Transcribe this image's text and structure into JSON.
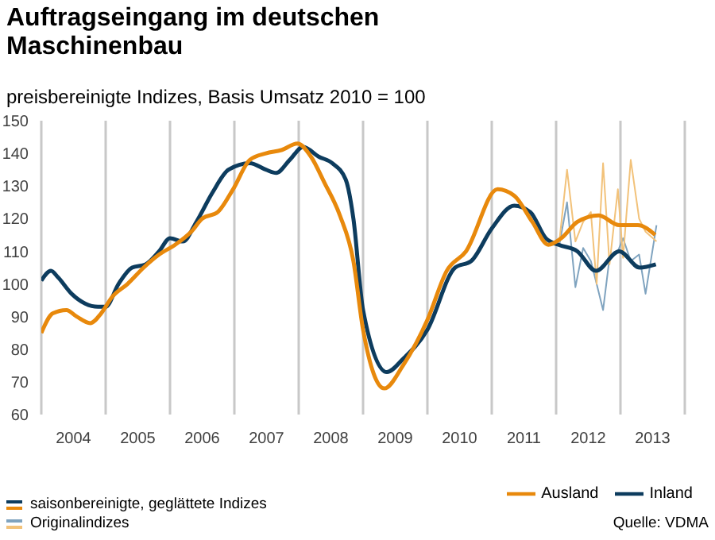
{
  "chart_data": {
    "type": "line",
    "title": "Auftragseingang im deutschen Maschinenbau",
    "subtitle": "preisbereinigte Indizes, Basis Umsatz 2010 = 100",
    "xlim": [
      2004,
      2014
    ],
    "xticks": [
      {
        "value": 2004,
        "label": null
      },
      {
        "value": 2004.5,
        "label": "2004"
      },
      {
        "value": 2005,
        "label": null
      },
      {
        "value": 2005.5,
        "label": "2005"
      },
      {
        "value": 2006,
        "label": null
      },
      {
        "value": 2006.5,
        "label": "2006"
      },
      {
        "value": 2007,
        "label": null
      },
      {
        "value": 2007.5,
        "label": "2007"
      },
      {
        "value": 2008,
        "label": null
      },
      {
        "value": 2008.5,
        "label": "2008"
      },
      {
        "value": 2009,
        "label": null
      },
      {
        "value": 2009.5,
        "label": "2009"
      },
      {
        "value": 2010,
        "label": null
      },
      {
        "value": 2010.5,
        "label": "2010"
      },
      {
        "value": 2011,
        "label": null
      },
      {
        "value": 2011.5,
        "label": "2011"
      },
      {
        "value": 2012,
        "label": null
      },
      {
        "value": 2012.5,
        "label": "2012"
      },
      {
        "value": 2013,
        "label": null
      },
      {
        "value": 2013.5,
        "label": "2013"
      },
      {
        "value": 2014,
        "label": null
      }
    ],
    "ylim": [
      60,
      150
    ],
    "yticks": [
      60,
      70,
      80,
      90,
      100,
      110,
      120,
      130,
      140,
      150
    ],
    "grid": "x",
    "legend": "bottom right",
    "marker": "none",
    "line_style": "solid",
    "series": [
      {
        "name": "Inland",
        "color": "#0d3c5e",
        "x": [
          2004,
          2004.15,
          2004.26,
          2004.47,
          2004.68,
          2004.88,
          2005,
          2005.2,
          2005.41,
          2005.62,
          2005.83,
          2006,
          2006.2,
          2006.41,
          2006.66,
          2006.91,
          2007.24,
          2007.49,
          2007.65,
          2007.86,
          2008.07,
          2008.31,
          2008.52,
          2008.73,
          2008.85,
          2009,
          2009.37,
          2009.62,
          2010,
          2010.43,
          2010.68,
          2011,
          2011.35,
          2011.6,
          2011.84,
          2012.04,
          2012.33,
          2012.62,
          2012.98,
          2013.3,
          2013.55
        ],
        "values": [
          101,
          104,
          102,
          97,
          94,
          93,
          93,
          100,
          105,
          106,
          110,
          114,
          113,
          119,
          128,
          135,
          137,
          135,
          134,
          138,
          142,
          139,
          137,
          132,
          120,
          92,
          73,
          77,
          86,
          105,
          107,
          117,
          124,
          122,
          114,
          112,
          110,
          104,
          110,
          105,
          106
        ]
      },
      {
        "name": "Ausland",
        "color": "#e8890c",
        "x": [
          2004,
          2004.18,
          2004.39,
          2004.55,
          2004.76,
          2004.93,
          2005.1,
          2005.34,
          2005.59,
          2005.83,
          2006.08,
          2006.33,
          2006.5,
          2006.74,
          2006.98,
          2007.24,
          2007.49,
          2007.73,
          2007.98,
          2008.19,
          2008.4,
          2008.64,
          2008.85,
          2009,
          2009.33,
          2009.62,
          2010,
          2010.3,
          2010.6,
          2011.09,
          2011.35,
          2011.63,
          2011.88,
          2012.08,
          2012.33,
          2012.66,
          2012.98,
          2013.27,
          2013.54
        ],
        "values": [
          85,
          91,
          92,
          90,
          88,
          91,
          96,
          100,
          105,
          109,
          112,
          116,
          120,
          122,
          129,
          138,
          140,
          141,
          143,
          139,
          131,
          121,
          107,
          86,
          68,
          75,
          89,
          104,
          110,
          129,
          127,
          119,
          112,
          114,
          119,
          121,
          118,
          118,
          115
        ]
      },
      {
        "color": "#7fa3bf",
        "x": [
          2011.9,
          2012.05,
          2012.17,
          2012.3,
          2012.42,
          2012.54,
          2012.63,
          2012.73,
          2012.83,
          2012.96,
          2013.04,
          2013.16,
          2013.29,
          2013.39,
          2013.56
        ],
        "values": [
          112,
          112,
          125,
          99,
          111,
          107,
          100,
          92,
          108,
          110,
          114,
          107,
          109,
          97,
          118
        ]
      },
      {
        "color": "#f2c27a",
        "x": [
          2011.9,
          2012.05,
          2012.17,
          2012.3,
          2012.42,
          2012.54,
          2012.63,
          2012.73,
          2012.83,
          2012.96,
          2013.04,
          2013.16,
          2013.29,
          2013.39,
          2013.56
        ],
        "values": [
          112,
          113,
          135,
          113,
          119,
          122,
          100,
          137,
          106,
          129,
          108,
          138,
          120,
          116,
          113
        ]
      }
    ],
    "annotations": [
      "saisonbereinigte, geglättete Indizes",
      "Originalindizes",
      "Quelle: VDMA"
    ]
  }
}
